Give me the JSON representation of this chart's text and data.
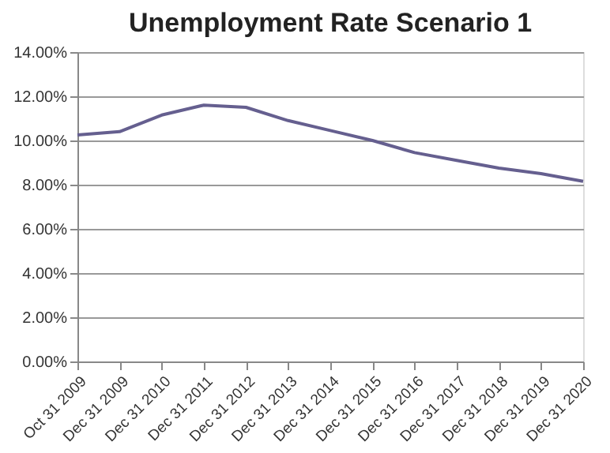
{
  "chart_data": {
    "type": "line",
    "title": "Unemployment Rate Scenario 1",
    "categories": [
      "Oct 31 2009",
      "Dec 31 2009",
      "Dec 31 2010",
      "Dec 31 2011",
      "Dec 31 2012",
      "Dec 31 2013",
      "Dec 31 2014",
      "Dec 31 2015",
      "Dec 31 2016",
      "Dec 31 2017",
      "Dec 31 2018",
      "Dec 31 2019",
      "Dec 31 2020"
    ],
    "series": [
      {
        "color": "#655f8f",
        "values": [
          10.25,
          10.4,
          11.15,
          11.6,
          11.5,
          10.9,
          10.45,
          10.0,
          9.45,
          9.1,
          8.75,
          8.5,
          8.15
        ]
      }
    ],
    "ylim": [
      0,
      14
    ],
    "yticks": [
      {
        "value": 0,
        "label": "0.00%"
      },
      {
        "value": 2,
        "label": "2.00%"
      },
      {
        "value": 4,
        "label": "4.00%"
      },
      {
        "value": 6,
        "label": "6.00%"
      },
      {
        "value": 8,
        "label": "8.00%"
      },
      {
        "value": 10,
        "label": "10.00%"
      },
      {
        "value": 12,
        "label": "12.00%"
      },
      {
        "value": 14,
        "label": "14.00%"
      }
    ],
    "grid": "y",
    "marker": "none",
    "line_style": "solid"
  }
}
